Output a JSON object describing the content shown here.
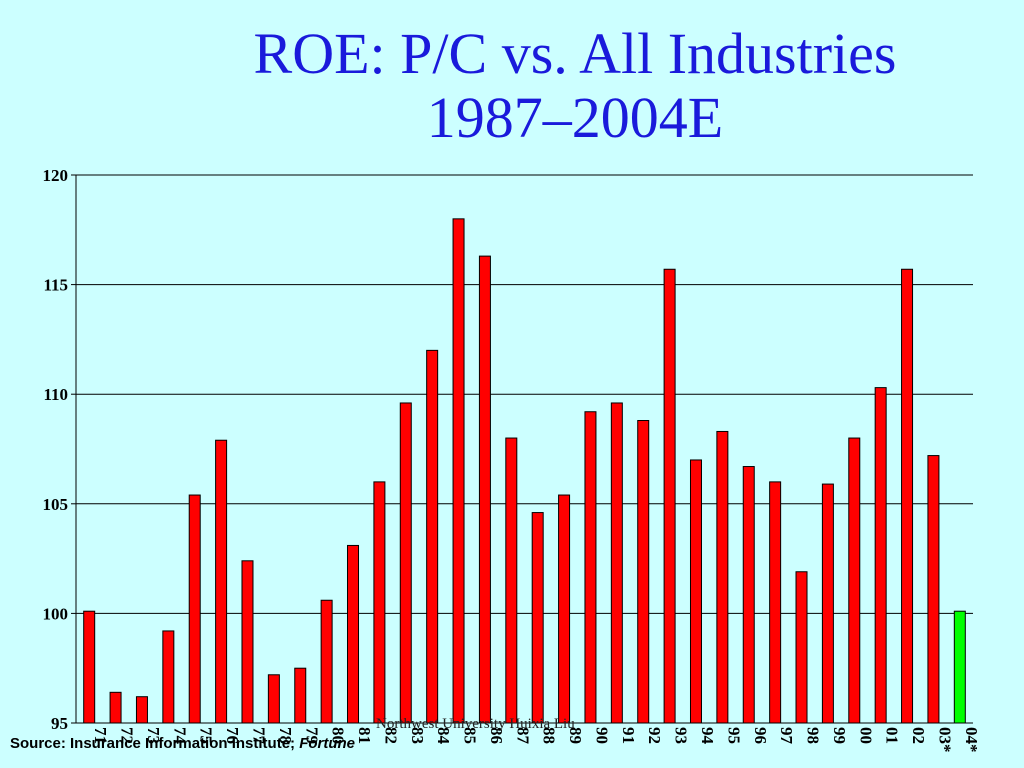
{
  "title_line1": "ROE: P/C vs. All Industries",
  "title_line2": "1987–2004E",
  "footer": "Northwest University   Huixia Liu",
  "source_prefix": "Source:  Insurance Information Institute;",
  "source_italic": "Fortune",
  "colors": {
    "bar": "#ff0000",
    "bar_highlight": "#00ff00",
    "title": "#1a1adb",
    "background": "#ccffff"
  },
  "chart_data": {
    "type": "bar",
    "title": "ROE: P/C vs. All Industries 1987–2004E",
    "ylim": [
      95,
      120
    ],
    "yticks": [
      95,
      100,
      105,
      110,
      115,
      120
    ],
    "grid": true,
    "categories": [
      "71",
      "72",
      "73",
      "74",
      "75",
      "76",
      "77",
      "78",
      "79",
      "80",
      "81",
      "82",
      "83",
      "84",
      "85",
      "86",
      "87",
      "88",
      "89",
      "90",
      "91",
      "92",
      "93",
      "94",
      "95",
      "96",
      "97",
      "98",
      "99",
      "00",
      "01",
      "02",
      "03*",
      "04*"
    ],
    "values": [
      100.1,
      96.4,
      96.2,
      99.2,
      105.4,
      107.9,
      102.4,
      97.2,
      97.5,
      100.6,
      103.1,
      106.0,
      109.6,
      112.0,
      118.0,
      116.3,
      108.0,
      104.6,
      105.4,
      109.2,
      109.6,
      108.8,
      115.7,
      107.0,
      108.3,
      106.7,
      106.0,
      101.9,
      105.9,
      108.0,
      110.3,
      115.7,
      107.2,
      100.1
    ],
    "highlight": [
      false,
      false,
      false,
      false,
      false,
      false,
      false,
      false,
      false,
      false,
      false,
      false,
      false,
      false,
      false,
      false,
      false,
      false,
      false,
      false,
      false,
      false,
      false,
      false,
      false,
      false,
      false,
      false,
      false,
      false,
      false,
      false,
      false,
      true
    ]
  }
}
